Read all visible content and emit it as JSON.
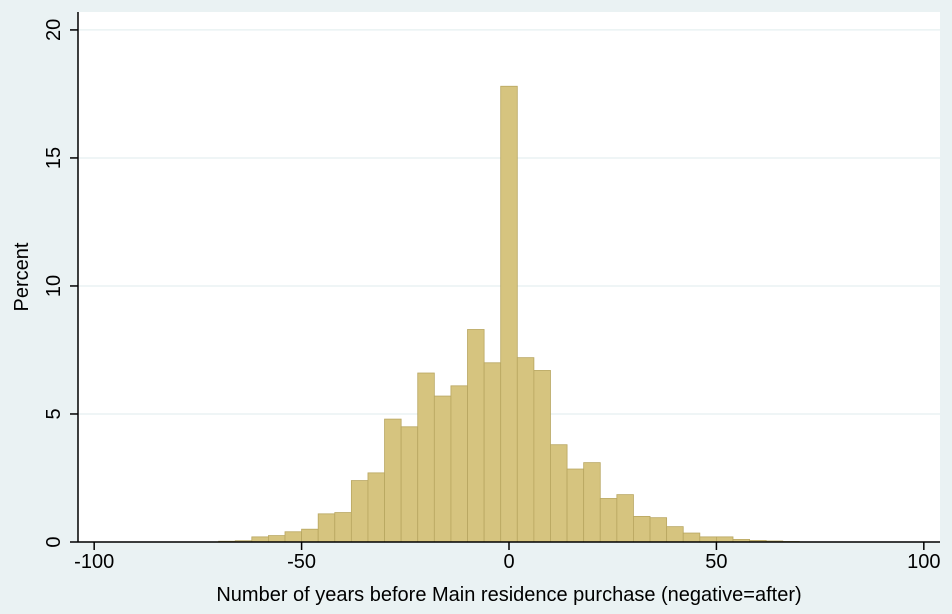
{
  "chart_data": {
    "type": "histogram",
    "x_label": "Number of years before Main residence purchase (negative=after)",
    "y_label": "Percent",
    "bins": [
      -70,
      -66,
      -62,
      -58,
      -54,
      -50,
      -46,
      -42,
      -38,
      -34,
      -30,
      -26,
      -22,
      -18,
      -14,
      -10,
      -6,
      -2,
      2,
      6,
      10,
      14,
      18,
      22,
      26,
      30,
      34,
      38,
      42,
      46,
      50,
      54,
      58,
      62,
      66,
      70
    ],
    "values": [
      0.03,
      0.05,
      0.2,
      0.25,
      0.4,
      0.5,
      1.1,
      1.15,
      2.4,
      2.7,
      4.8,
      4.5,
      6.6,
      5.7,
      6.1,
      8.3,
      7.0,
      17.8,
      7.2,
      6.7,
      3.8,
      2.85,
      3.1,
      1.7,
      1.85,
      1.0,
      0.95,
      0.6,
      0.35,
      0.2,
      0.2,
      0.1,
      0.06,
      0.04,
      0.02
    ],
    "color": "#d6c47f",
    "xlim": [
      -103.9,
      103.9
    ],
    "xticks": [
      -100,
      -50,
      0,
      50,
      100
    ],
    "ylim": [
      0,
      20.7
    ],
    "yticks": [
      0,
      5,
      10,
      15,
      20
    ],
    "grid": true
  }
}
